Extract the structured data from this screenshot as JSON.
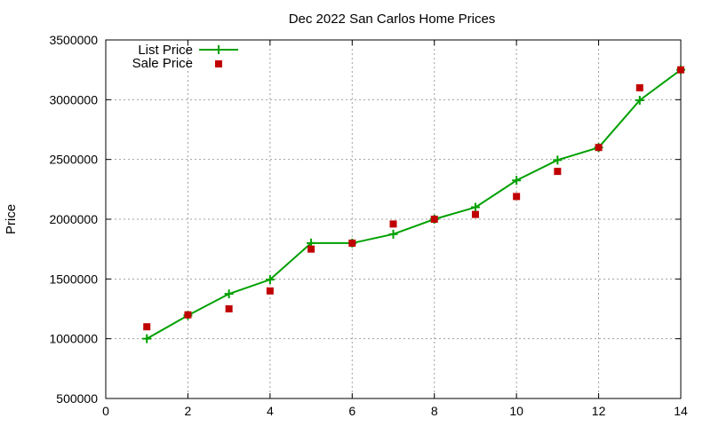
{
  "chart_data": {
    "type": "line",
    "title": "Dec 2022 San Carlos Home Prices",
    "xlabel": "",
    "ylabel": "Price",
    "xlim": [
      0,
      14
    ],
    "ylim": [
      500000,
      3500000
    ],
    "xticks": [
      "0",
      "2",
      "4",
      "6",
      "8",
      "10",
      "12",
      "14"
    ],
    "yticks": [
      "500000",
      "1000000",
      "1500000",
      "2000000",
      "2500000",
      "3000000",
      "3500000"
    ],
    "grid": true,
    "legend_position": "top-left",
    "series": [
      {
        "name": "List Price",
        "style": "line+cross",
        "color": "#00a000",
        "x": [
          1,
          2,
          3,
          4,
          5,
          6,
          7,
          8,
          9,
          10,
          11,
          12,
          13,
          14
        ],
        "y": [
          1000000,
          1195000,
          1375000,
          1495000,
          1800000,
          1800000,
          1875000,
          2000000,
          2100000,
          2325000,
          2495000,
          2600000,
          2995000,
          3250000
        ]
      },
      {
        "name": "Sale Price",
        "style": "square",
        "color": "#c00000",
        "x": [
          1,
          2,
          3,
          4,
          5,
          6,
          7,
          8,
          9,
          10,
          11,
          12,
          13,
          14
        ],
        "y": [
          1100000,
          1200000,
          1250000,
          1400000,
          1750000,
          1800000,
          1960000,
          2000000,
          2040000,
          2190000,
          2400000,
          2600000,
          3100000,
          3250000
        ]
      }
    ]
  }
}
